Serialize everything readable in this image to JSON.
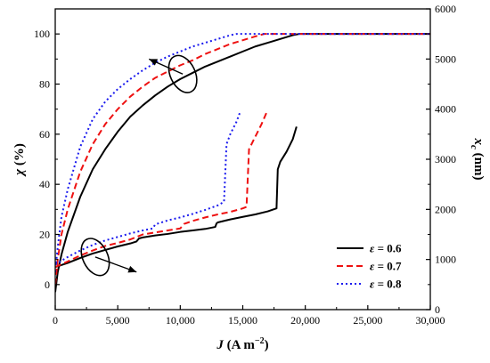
{
  "chart_data": {
    "type": "line",
    "title": "",
    "xlabel": "J (A m−2)",
    "xlabel_parts": {
      "var": "J",
      "unit": "(A m",
      "exp": "−2",
      "close": ")"
    },
    "ylabel_left": "χ (%)",
    "ylabel_left_parts": {
      "var": "χ",
      "unit": "(%)"
    },
    "ylabel_right": "xc (nm)",
    "ylabel_right_parts": {
      "var": "x",
      "sub": "c",
      "unit": "(nm)"
    },
    "xlim": [
      0,
      30000
    ],
    "ylim_left": [
      -10,
      110
    ],
    "ylim_right": [
      0,
      6000
    ],
    "x_ticks": [
      0,
      5000,
      10000,
      15000,
      20000,
      25000,
      30000
    ],
    "x_tick_labels": [
      "0",
      "5,000",
      "10,000",
      "15,000",
      "20,000",
      "25,000",
      "30,000"
    ],
    "y_left_ticks": [
      0,
      20,
      40,
      60,
      80,
      100
    ],
    "y_left_tick_labels": [
      "0",
      "20",
      "40",
      "60",
      "80",
      "100"
    ],
    "y_right_ticks": [
      0,
      1000,
      2000,
      3000,
      4000,
      5000,
      6000
    ],
    "y_right_tick_labels": [
      "0",
      "1000",
      "2000",
      "3000",
      "4000",
      "5000",
      "6000"
    ],
    "grid": false,
    "legend_position": "bottom-right",
    "series": [
      {
        "name": "ε = 0.6",
        "color": "#000000",
        "dash": "solid",
        "axis": "left",
        "x": [
          0,
          200,
          500,
          1000,
          2000,
          3000,
          4000,
          5000,
          6000,
          7000,
          8000,
          9000,
          10000,
          11000,
          12000,
          13000,
          14000,
          15000,
          16000,
          17000,
          18000,
          19000,
          19500,
          20000,
          25000,
          30000
        ],
        "values": [
          -3,
          5,
          12,
          21,
          35,
          46,
          54,
          61,
          67,
          71.5,
          75.5,
          79,
          82,
          84.5,
          87,
          89,
          91,
          93,
          95,
          96.5,
          98,
          99.5,
          100,
          100,
          100,
          100
        ]
      },
      {
        "name": "ε = 0.7",
        "color": "#ee1111",
        "dash": "dashed",
        "axis": "left",
        "x": [
          0,
          200,
          500,
          1000,
          2000,
          3000,
          4000,
          5000,
          6000,
          7000,
          8000,
          9000,
          10000,
          11000,
          12000,
          13000,
          14000,
          15000,
          16000,
          16700,
          20000,
          25000,
          30000
        ],
        "values": [
          0,
          10,
          20,
          30,
          45,
          56,
          64,
          70,
          75,
          79,
          82.5,
          85,
          87.5,
          89.5,
          92,
          94,
          96,
          97.5,
          99,
          100,
          100,
          100,
          100
        ]
      },
      {
        "name": "ε = 0.8",
        "color": "#1a1aee",
        "dash": "dotted",
        "axis": "left",
        "x": [
          0,
          200,
          500,
          1000,
          2000,
          3000,
          4000,
          5000,
          6000,
          7000,
          8000,
          9000,
          10000,
          11000,
          12000,
          13000,
          14000,
          14500,
          20000,
          25000,
          30000
        ],
        "values": [
          5,
          15,
          27,
          38,
          55,
          66,
          73,
          78,
          82,
          85.5,
          88.5,
          91,
          93,
          95,
          96.5,
          98,
          99.5,
          100,
          100,
          100,
          100
        ]
      },
      {
        "name": "ε = 0.6",
        "color": "#000000",
        "dash": "solid",
        "axis": "right",
        "x": [
          0,
          1000,
          2000,
          3000,
          4000,
          5000,
          6000,
          6500,
          6700,
          7000,
          8000,
          9000,
          10000,
          11000,
          12000,
          12800,
          12900,
          13000,
          14000,
          15000,
          16000,
          17000,
          17700,
          17800,
          18000,
          18500,
          19000,
          19300
        ],
        "values": [
          850,
          930,
          1030,
          1120,
          1190,
          1260,
          1320,
          1360,
          1420,
          1440,
          1480,
          1510,
          1550,
          1580,
          1610,
          1650,
          1720,
          1740,
          1800,
          1850,
          1900,
          1960,
          2020,
          2800,
          2950,
          3150,
          3400,
          3650
        ]
      },
      {
        "name": "ε = 0.7",
        "color": "#ee1111",
        "dash": "dashed",
        "axis": "right",
        "x": [
          0,
          1000,
          2000,
          3000,
          4000,
          5000,
          6000,
          6500,
          7000,
          8000,
          9000,
          10000,
          10300,
          11000,
          12000,
          13000,
          14000,
          15000,
          15300,
          15500,
          16000,
          16500,
          16900
        ],
        "values": [
          850,
          960,
          1080,
          1180,
          1270,
          1330,
          1400,
          1450,
          1500,
          1540,
          1580,
          1620,
          1710,
          1770,
          1840,
          1900,
          1950,
          2020,
          2050,
          3200,
          3450,
          3700,
          3930
        ]
      },
      {
        "name": "ε = 0.8",
        "color": "#1a1aee",
        "dash": "dotted",
        "axis": "right",
        "x": [
          0,
          1000,
          2000,
          3000,
          4000,
          5000,
          6000,
          7000,
          7800,
          8000,
          9000,
          10000,
          11000,
          12000,
          13000,
          13500,
          13700,
          14000,
          14500,
          14800
        ],
        "values": [
          900,
          1050,
          1180,
          1290,
          1380,
          1450,
          1520,
          1580,
          1620,
          1700,
          1780,
          1840,
          1910,
          1990,
          2080,
          2150,
          3300,
          3500,
          3750,
          3950
        ]
      }
    ],
    "legend": [
      {
        "label": "ε = 0.6",
        "color": "#000000",
        "dash": "solid"
      },
      {
        "label": "ε = 0.7",
        "color": "#ee1111",
        "dash": "dashed"
      },
      {
        "label": "ε = 0.8",
        "color": "#1a1aee",
        "dash": "dotted"
      }
    ],
    "annotations": [
      {
        "type": "axis-indicator",
        "points_to": "left",
        "ellipse_center": [
          10200,
          84
        ],
        "arrow_to": [
          7500,
          90
        ]
      },
      {
        "type": "axis-indicator",
        "points_to": "right",
        "ellipse_center": [
          3200,
          1050
        ],
        "arrow_to": [
          6500,
          750
        ],
        "axis": "right"
      }
    ]
  }
}
